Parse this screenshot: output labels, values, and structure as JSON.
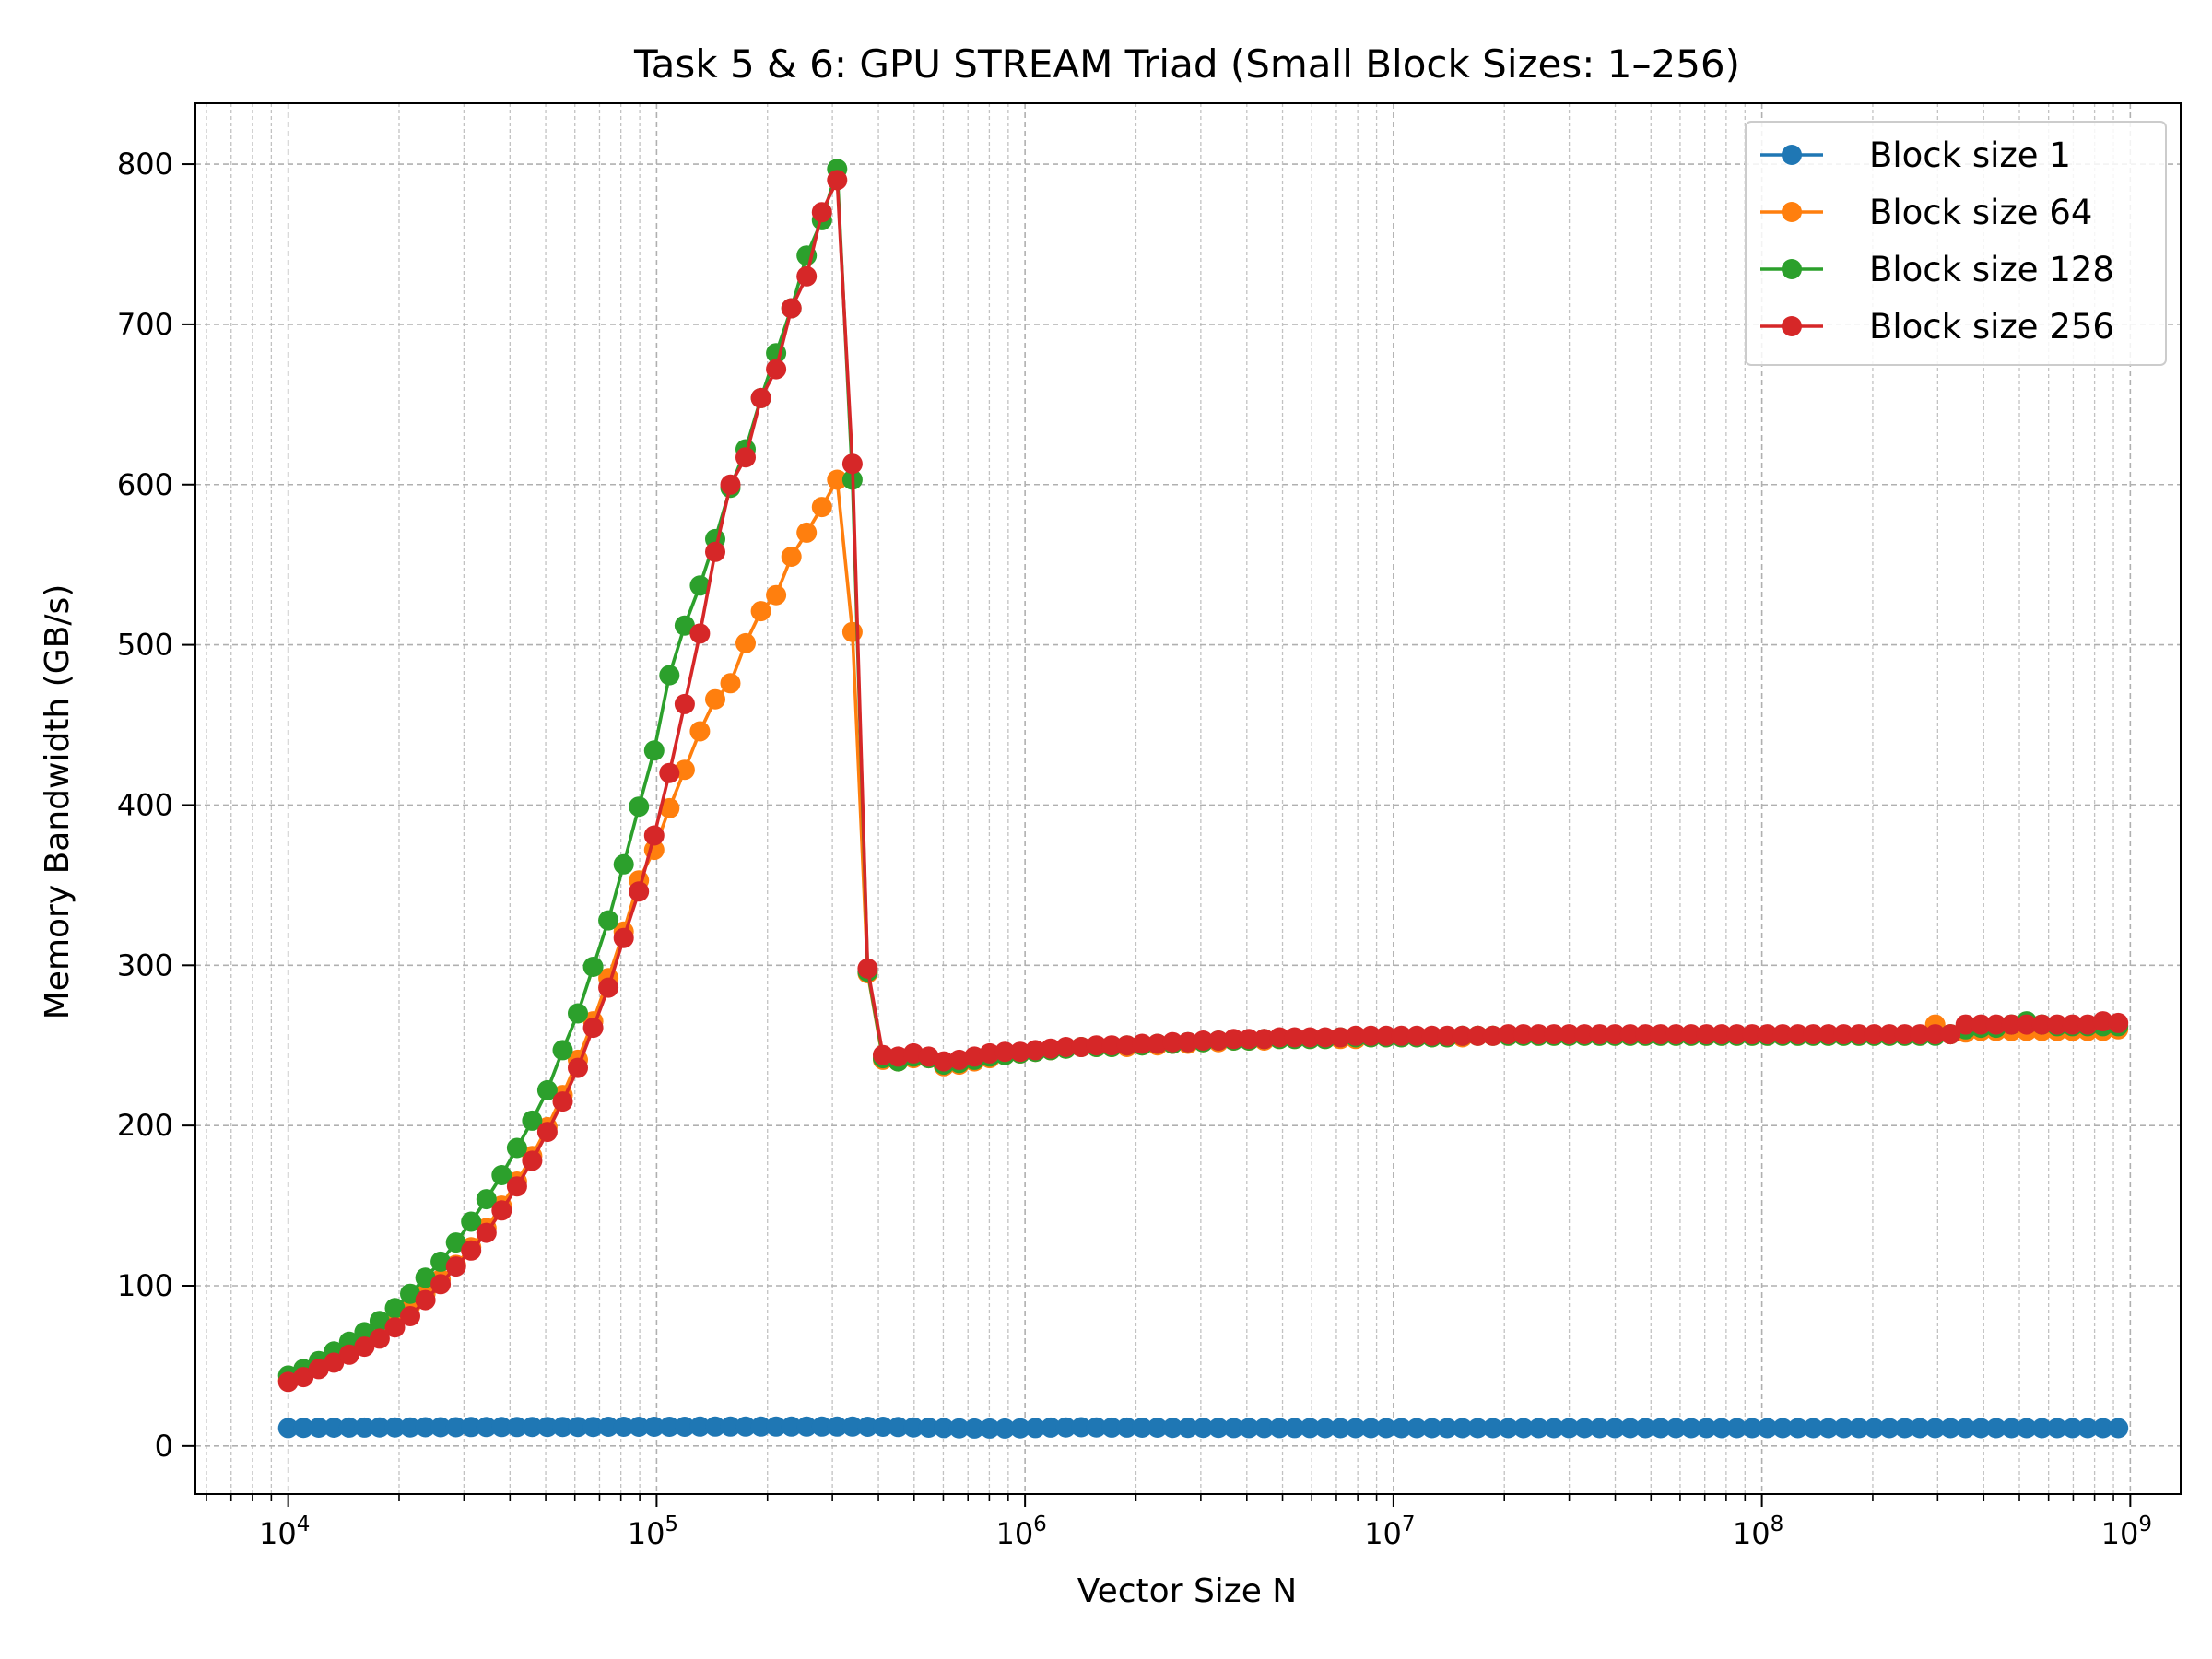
{
  "chart_data": {
    "type": "line",
    "title": "Task 5 & 6: GPU STREAM Triad (Small Block Sizes: 1–256)",
    "xlabel": "Vector Size N",
    "ylabel": "Memory Bandwidth (GB/s)",
    "x_scale": "log",
    "xlim": [
      5600,
      1370000000
    ],
    "ylim": [
      -30,
      838
    ],
    "x_ticks": [
      {
        "value": 10000,
        "base": "10",
        "exp": "4"
      },
      {
        "value": 100000,
        "base": "10",
        "exp": "5"
      },
      {
        "value": 1000000,
        "base": "10",
        "exp": "6"
      },
      {
        "value": 10000000,
        "base": "10",
        "exp": "7"
      },
      {
        "value": 100000000,
        "base": "10",
        "exp": "8"
      },
      {
        "value": 1000000000,
        "base": "10",
        "exp": "9"
      }
    ],
    "y_ticks": [
      0,
      100,
      200,
      300,
      400,
      500,
      600,
      700,
      800
    ],
    "grid": "major and minor, dashed",
    "legend_position": "top-right",
    "series": [
      {
        "name": "Block size 1",
        "color": "#1f77b4",
        "x": [
          10000,
          11000,
          12100,
          13310,
          14641,
          16105,
          17716,
          19487,
          21436,
          23579,
          25937,
          28531,
          31384,
          34523,
          37975,
          41772,
          45950,
          50545,
          55599,
          61159,
          67275,
          74002,
          81403,
          89543,
          98497,
          108347,
          119182,
          131100,
          144210,
          158631,
          174494,
          191943,
          211138,
          232252,
          255477,
          281024,
          309127,
          340039,
          374043,
          411448,
          452593,
          497852,
          547637,
          602401,
          662641,
          728905,
          801795,
          881975,
          970172,
          1067190,
          1173909,
          1291299,
          1420429,
          1562472,
          1718719,
          1890591,
          2079650,
          2287615,
          2516377,
          2768014,
          3044816,
          3349298,
          3684228,
          4052650,
          4457915,
          4903707,
          5394077,
          5933485,
          6526834,
          7179517,
          7897469,
          8687216,
          9555938,
          10511531,
          11562685,
          12718953,
          13990849,
          15389934,
          16928927,
          18621820,
          20484002,
          22532402,
          24785642,
          27264207,
          29990627,
          32989690,
          36288659,
          39917525,
          43909278,
          48300206,
          53130226,
          58443249,
          64287574,
          70716331,
          77787965,
          85566761,
          94123437,
          103535781,
          113889359,
          125278295,
          137806124,
          151586737,
          166745410,
          183419951,
          201761946,
          221938141,
          244131955,
          268545150,
          295399665,
          324939632,
          357433595,
          393176954,
          432494650,
          475744115,
          523318526,
          575650379,
          633215417,
          696536959,
          766190655,
          842809720,
          927090692
        ],
        "values": [
          11.2,
          11.3,
          11.4,
          11.4,
          11.5,
          11.5,
          11.6,
          11.6,
          11.6,
          11.7,
          11.7,
          11.7,
          11.8,
          11.8,
          11.8,
          11.8,
          11.9,
          11.9,
          11.9,
          11.9,
          11.9,
          12.0,
          12.0,
          12.0,
          12.0,
          12.0,
          12.0,
          12.1,
          12.1,
          12.1,
          12.1,
          12.1,
          12.1,
          12.1,
          12.1,
          12.1,
          12.1,
          12.1,
          12.0,
          12.0,
          11.8,
          11.6,
          11.4,
          11.2,
          11.0,
          10.9,
          10.9,
          10.9,
          11.0,
          11.2,
          11.5,
          11.6,
          11.7,
          11.6,
          11.5,
          11.5,
          11.4,
          11.4,
          11.3,
          11.3,
          11.3,
          11.3,
          11.2,
          11.2,
          11.2,
          11.2,
          11.2,
          11.2,
          11.1,
          11.1,
          11.1,
          11.1,
          11.1,
          11.1,
          11.1,
          11.1,
          11.1,
          11.1,
          11.1,
          11.1,
          11.1,
          11.1,
          11.1,
          11.1,
          11.1,
          11.1,
          11.1,
          11.1,
          11.1,
          11.1,
          11.1,
          11.1,
          11.1,
          11.1,
          11.1,
          11.1,
          11.1,
          11.1,
          11.1,
          11.1,
          11.1,
          11.1,
          11.1,
          11.1,
          11.1,
          11.1,
          11.1,
          11.1,
          11.1,
          11.1,
          11.1,
          11.1,
          11.1,
          11.1,
          11.1,
          11.1,
          11.1,
          11.1,
          11.1,
          11.1,
          11.1
        ]
      },
      {
        "name": "Block size 64",
        "color": "#ff7f0e",
        "x": [
          10000,
          11000,
          12100,
          13310,
          14641,
          16105,
          17716,
          19487,
          21436,
          23579,
          25937,
          28531,
          31384,
          34523,
          37975,
          41772,
          45950,
          50545,
          55599,
          61159,
          67275,
          74002,
          81403,
          89543,
          98497,
          108347,
          119182,
          131100,
          144210,
          158631,
          174494,
          191943,
          211138,
          232252,
          255477,
          281024,
          309127,
          340039,
          374043,
          411448,
          452593,
          497852,
          547637,
          602401,
          662641,
          728905,
          801795,
          881975,
          970172,
          1067190,
          1173909,
          1291299,
          1420429,
          1562472,
          1718719,
          1890591,
          2079650,
          2287615,
          2516377,
          2768014,
          3044816,
          3349298,
          3684228,
          4052650,
          4457915,
          4903707,
          5394077,
          5933485,
          6526834,
          7179517,
          7897469,
          8687216,
          9555938,
          10511531,
          11562685,
          12718953,
          13990849,
          15389934,
          16928927,
          18621820,
          20484002,
          22532402,
          24785642,
          27264207,
          29990627,
          32989690,
          36288659,
          39917525,
          43909278,
          48300206,
          53130226,
          58443249,
          64287574,
          70716331,
          77787965,
          85566761,
          94123437,
          103535781,
          113889359,
          125278295,
          137806124,
          151586737,
          166745410,
          183419951,
          201761946,
          221938141,
          244131955,
          268545150,
          295399665,
          324939632,
          357433595,
          393176954,
          432494650,
          475744115,
          523318526,
          575650379,
          633215417,
          696536959,
          766190655,
          842809720,
          927090692
        ],
        "values": [
          41,
          45,
          50,
          55,
          61,
          66,
          72,
          79,
          87,
          95,
          104,
          113,
          124,
          136,
          150,
          165,
          181,
          199,
          219,
          241,
          265,
          292,
          321,
          353,
          372,
          398,
          422,
          446,
          466,
          476,
          501,
          521,
          531,
          555,
          570,
          586,
          603,
          508,
          295,
          241,
          240,
          242,
          242,
          237,
          238,
          240,
          242,
          244,
          245,
          246,
          247,
          248,
          249,
          249,
          249,
          249,
          250,
          250,
          251,
          251,
          252,
          252,
          253,
          253,
          253,
          254,
          254,
          254,
          254,
          254,
          254,
          255,
          255,
          255,
          255,
          255,
          255,
          255,
          256,
          256,
          256,
          256,
          256,
          256,
          256,
          256,
          256,
          256,
          256,
          256,
          256,
          256,
          256,
          256,
          256,
          256,
          256,
          256,
          256,
          256,
          256,
          256,
          256,
          256,
          256,
          256,
          256,
          256,
          263,
          257,
          258,
          259,
          259,
          259,
          259,
          259,
          259,
          259,
          259,
          259,
          260
        ]
      },
      {
        "name": "Block size 128",
        "color": "#2ca02c",
        "x": [
          10000,
          11000,
          12100,
          13310,
          14641,
          16105,
          17716,
          19487,
          21436,
          23579,
          25937,
          28531,
          31384,
          34523,
          37975,
          41772,
          45950,
          50545,
          55599,
          61159,
          67275,
          74002,
          81403,
          89543,
          98497,
          108347,
          119182,
          131100,
          144210,
          158631,
          174494,
          191943,
          211138,
          232252,
          255477,
          281024,
          309127,
          340039,
          374043,
          411448,
          452593,
          497852,
          547637,
          602401,
          662641,
          728905,
          801795,
          881975,
          970172,
          1067190,
          1173909,
          1291299,
          1420429,
          1562472,
          1718719,
          1890591,
          2079650,
          2287615,
          2516377,
          2768014,
          3044816,
          3349298,
          3684228,
          4052650,
          4457915,
          4903707,
          5394077,
          5933485,
          6526834,
          7179517,
          7897469,
          8687216,
          9555938,
          10511531,
          11562685,
          12718953,
          13990849,
          15389934,
          16928927,
          18621820,
          20484002,
          22532402,
          24785642,
          27264207,
          29990627,
          32989690,
          36288659,
          39917525,
          43909278,
          48300206,
          53130226,
          58443249,
          64287574,
          70716331,
          77787965,
          85566761,
          94123437,
          103535781,
          113889359,
          125278295,
          137806124,
          151586737,
          166745410,
          183419951,
          201761946,
          221938141,
          244131955,
          268545150,
          295399665,
          324939632,
          357433595,
          393176954,
          432494650,
          475744115,
          523318526,
          575650379,
          633215417,
          696536959,
          766190655,
          842809720,
          927090692
        ],
        "values": [
          44,
          48,
          53,
          59,
          65,
          71,
          78,
          86,
          95,
          105,
          115,
          127,
          140,
          154,
          169,
          186,
          203,
          222,
          247,
          270,
          299,
          328,
          363,
          399,
          434,
          481,
          512,
          537,
          566,
          598,
          622,
          654,
          682,
          710,
          743,
          765,
          797,
          603,
          296,
          242,
          240,
          243,
          242,
          238,
          239,
          241,
          243,
          244,
          245,
          246,
          247,
          248,
          249,
          249,
          249,
          250,
          250,
          251,
          251,
          252,
          252,
          253,
          253,
          253,
          254,
          254,
          254,
          254,
          254,
          255,
          255,
          255,
          255,
          255,
          255,
          255,
          255,
          256,
          256,
          256,
          256,
          256,
          256,
          256,
          256,
          256,
          256,
          256,
          256,
          256,
          256,
          256,
          256,
          256,
          256,
          256,
          256,
          256,
          256,
          256,
          256,
          256,
          256,
          256,
          256,
          256,
          256,
          256,
          256,
          257,
          260,
          261,
          261,
          263,
          265,
          263,
          262,
          262,
          262,
          262,
          262
        ]
      },
      {
        "name": "Block size 256",
        "color": "#d62728",
        "x": [
          10000,
          11000,
          12100,
          13310,
          14641,
          16105,
          17716,
          19487,
          21436,
          23579,
          25937,
          28531,
          31384,
          34523,
          37975,
          41772,
          45950,
          50545,
          55599,
          61159,
          67275,
          74002,
          81403,
          89543,
          98497,
          108347,
          119182,
          131100,
          144210,
          158631,
          174494,
          191943,
          211138,
          232252,
          255477,
          281024,
          309127,
          340039,
          374043,
          411448,
          452593,
          497852,
          547637,
          602401,
          662641,
          728905,
          801795,
          881975,
          970172,
          1067190,
          1173909,
          1291299,
          1420429,
          1562472,
          1718719,
          1890591,
          2079650,
          2287615,
          2516377,
          2768014,
          3044816,
          3349298,
          3684228,
          4052650,
          4457915,
          4903707,
          5394077,
          5933485,
          6526834,
          7179517,
          7897469,
          8687216,
          9555938,
          10511531,
          11562685,
          12718953,
          13990849,
          15389934,
          16928927,
          18621820,
          20484002,
          22532402,
          24785642,
          27264207,
          29990627,
          32989690,
          36288659,
          39917525,
          43909278,
          48300206,
          53130226,
          58443249,
          64287574,
          70716331,
          77787965,
          85566761,
          94123437,
          103535781,
          113889359,
          125278295,
          137806124,
          151586737,
          166745410,
          183419951,
          201761946,
          221938141,
          244131955,
          268545150,
          295399665,
          324939632,
          357433595,
          393176954,
          432494650,
          475744115,
          523318526,
          575650379,
          633215417,
          696536959,
          766190655,
          842809720,
          927090692
        ],
        "values": [
          40,
          43,
          48,
          52,
          57,
          62,
          67,
          74,
          81,
          91,
          101,
          112,
          122,
          133,
          147,
          162,
          178,
          196,
          215,
          236,
          261,
          286,
          317,
          346,
          381,
          420,
          463,
          507,
          558,
          600,
          617,
          654,
          672,
          710,
          730,
          770,
          790,
          613,
          298,
          244,
          243,
          245,
          243,
          240,
          241,
          243,
          245,
          246,
          246,
          247,
          248,
          249,
          249,
          250,
          250,
          250,
          251,
          251,
          252,
          252,
          253,
          253,
          254,
          254,
          254,
          255,
          255,
          255,
          255,
          255,
          256,
          256,
          256,
          256,
          256,
          256,
          256,
          256,
          256,
          256,
          257,
          257,
          257,
          257,
          257,
          257,
          257,
          257,
          257,
          257,
          257,
          257,
          257,
          257,
          257,
          257,
          257,
          257,
          257,
          257,
          257,
          257,
          257,
          257,
          257,
          257,
          257,
          257,
          257,
          257,
          263,
          263,
          263,
          263,
          263,
          263,
          263,
          263,
          263,
          265,
          264
        ]
      }
    ]
  }
}
